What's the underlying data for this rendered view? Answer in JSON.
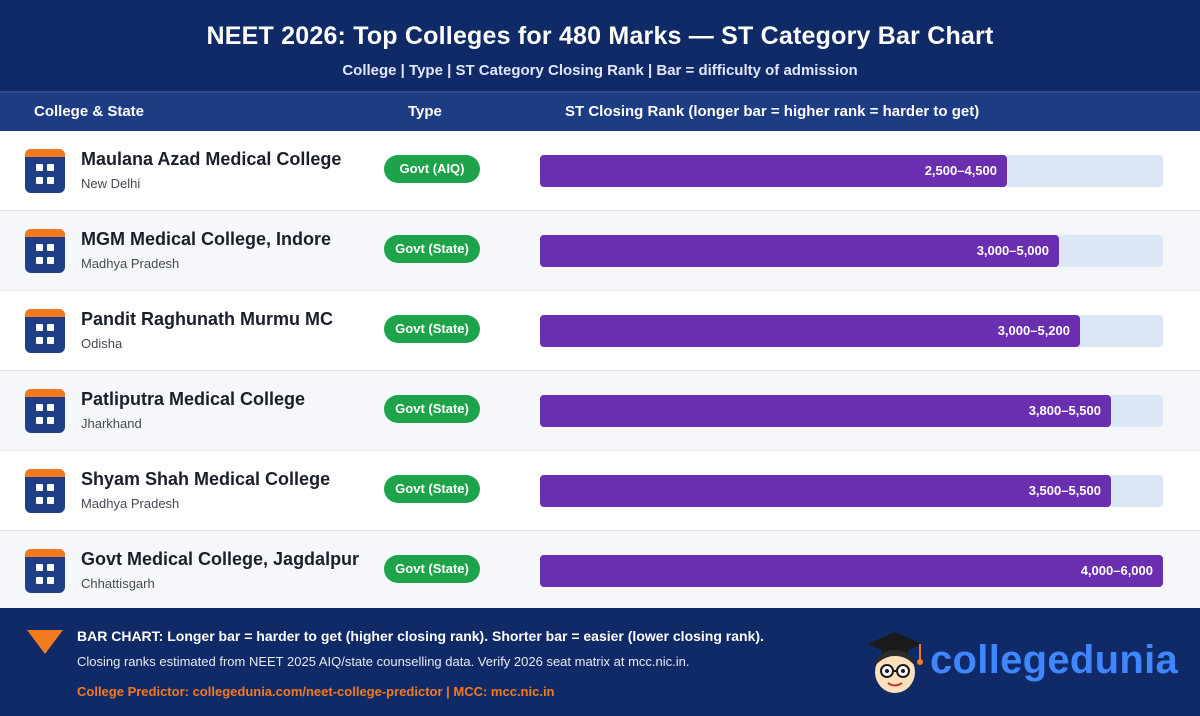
{
  "header": {
    "title": "NEET 2026: Top Colleges for 480 Marks — ST Category Bar Chart",
    "subtitle": "College | Type | ST Category Closing Rank | Bar = difficulty of admission"
  },
  "columns": {
    "college": "College & State",
    "type": "Type",
    "rank": "ST Closing Rank (longer bar = higher rank = harder to get)"
  },
  "rows": [
    {
      "name": "Maulana Azad Medical College",
      "state": "New Delhi",
      "type": "Govt (AIQ)",
      "rank": "2,500–4,500"
    },
    {
      "name": "MGM Medical College, Indore",
      "state": "Madhya Pradesh",
      "type": "Govt (State)",
      "rank": "3,000–5,000"
    },
    {
      "name": "Pandit Raghunath Murmu MC",
      "state": "Odisha",
      "type": "Govt (State)",
      "rank": "3,000–5,200"
    },
    {
      "name": "Patliputra Medical College",
      "state": "Jharkhand",
      "type": "Govt (State)",
      "rank": "3,800–5,500"
    },
    {
      "name": "Shyam Shah Medical College",
      "state": "Madhya Pradesh",
      "type": "Govt (State)",
      "rank": "3,500–5,500"
    },
    {
      "name": "Govt Medical College, Jagdalpur",
      "state": "Chhattisgarh",
      "type": "Govt (State)",
      "rank": "4,000–6,000"
    }
  ],
  "chart_data": {
    "type": "bar",
    "orientation": "horizontal",
    "title": "NEET 2026: Top Colleges for 480 Marks — ST Category Bar Chart",
    "xlabel": "ST Closing Rank (longer bar = higher rank = harder to get)",
    "categories": [
      "Maulana Azad Medical College",
      "MGM Medical College, Indore",
      "Pandit Raghunath Murmu MC",
      "Patliputra Medical College",
      "Shyam Shah Medical College",
      "Govt Medical College, Jagdalpur"
    ],
    "range_low": [
      2500,
      3000,
      3000,
      3800,
      3500,
      4000
    ],
    "values": [
      4500,
      5000,
      5200,
      5500,
      5500,
      6000
    ],
    "xlim": [
      0,
      6000
    ],
    "data_labels": [
      "2,500–4,500",
      "3,000–5,000",
      "3,000–5,200",
      "3,800–5,500",
      "3,500–5,500",
      "4,000–6,000"
    ],
    "grid": false,
    "legend": "none",
    "colors": {
      "bar": "#6a2fb0",
      "track": "#dde8f6",
      "badge": "#1fa34a"
    }
  },
  "footer": {
    "line1": "BAR CHART: Longer bar = harder to get (higher closing rank). Shorter bar = easier (lower closing rank).",
    "line2": "Closing ranks estimated from NEET 2025 AIQ/state counselling data. Verify 2026 seat matrix at mcc.nic.in.",
    "line3": "College Predictor: collegedunia.com/neet-college-predictor | MCC: mcc.nic.in",
    "brand": "collegedunia",
    "icons": {
      "college": "college-building-icon",
      "alert": "triangle-down-icon",
      "mascot": "graduate-mascot-icon"
    }
  }
}
